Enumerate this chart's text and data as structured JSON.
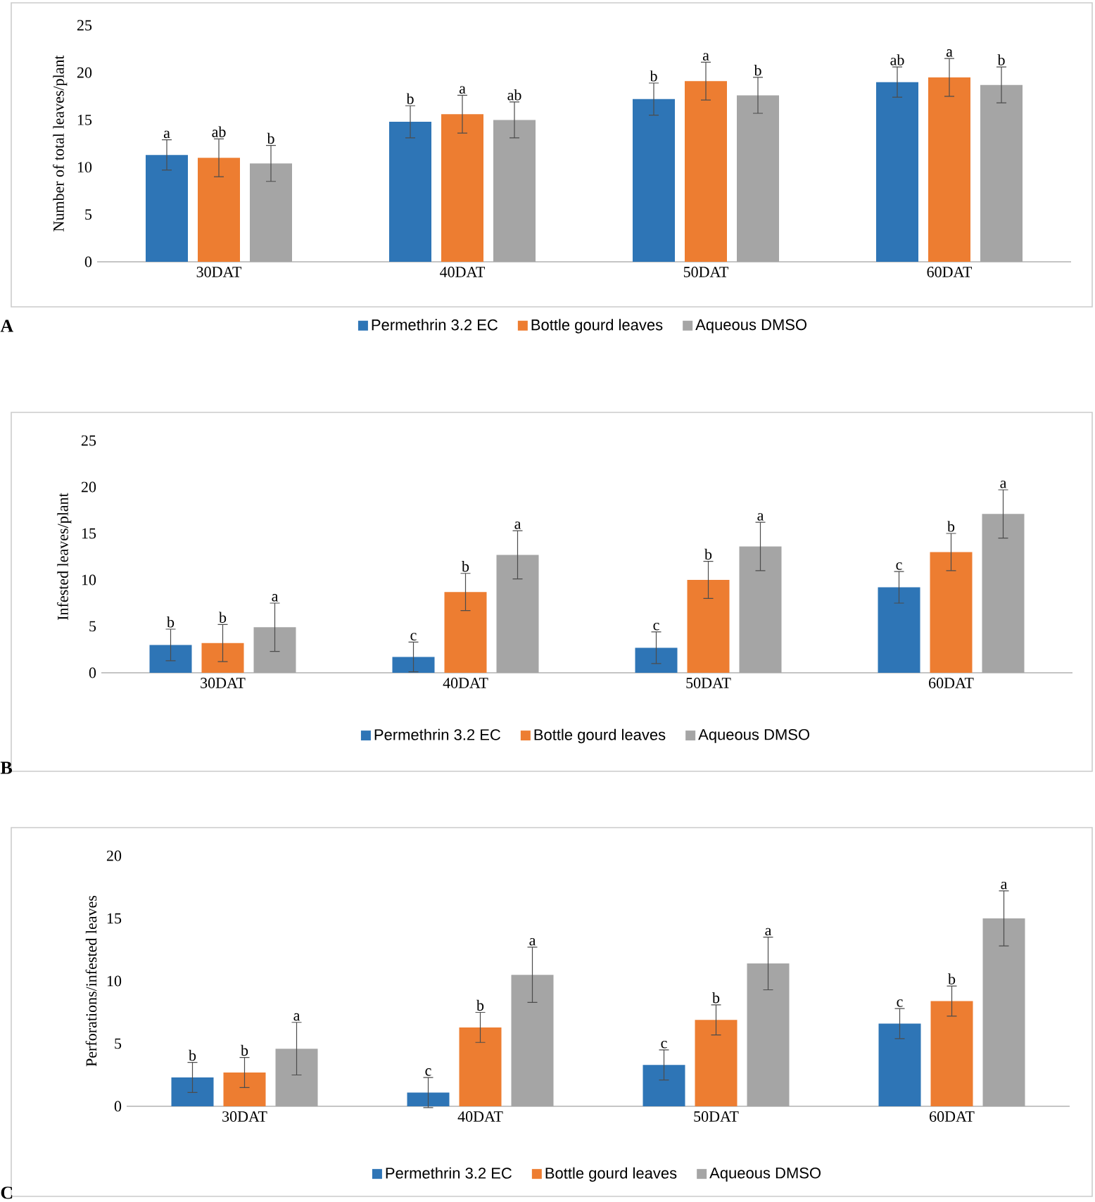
{
  "chart_data": [
    {
      "type": "bar",
      "ylabel": "Number of total leaves/plant",
      "categories": [
        "30DAT",
        "40DAT",
        "50DAT",
        "60DAT"
      ],
      "ylim": [
        0,
        25
      ],
      "yticks": [
        0,
        5,
        10,
        15,
        20,
        25
      ],
      "legend": "bottom",
      "annotations": [
        "A"
      ],
      "series": [
        {
          "name": "Permethrin 3.2 EC",
          "color": "#2e75b6",
          "values": [
            11.3,
            14.8,
            17.2,
            19.0
          ],
          "errors": [
            1.6,
            1.7,
            1.7,
            1.6
          ],
          "value_labels": [
            "a",
            "b",
            "b",
            "ab"
          ]
        },
        {
          "name": "Bottle gourd leaves",
          "color": "#ed7d31",
          "values": [
            11.0,
            15.6,
            19.1,
            19.5
          ],
          "errors": [
            2.0,
            2.0,
            2.0,
            2.0
          ],
          "value_labels": [
            "ab",
            "a",
            "a",
            "a"
          ]
        },
        {
          "name": "Aqueous DMSO",
          "color": "#a5a5a5",
          "values": [
            10.4,
            15.0,
            17.6,
            18.7
          ],
          "errors": [
            1.9,
            1.9,
            1.9,
            1.9
          ],
          "value_labels": [
            "b",
            "ab",
            "b",
            "b"
          ]
        }
      ]
    },
    {
      "type": "bar",
      "ylabel": "Infested leaves/plant",
      "categories": [
        "30DAT",
        "40DAT",
        "50DAT",
        "60DAT"
      ],
      "ylim": [
        0,
        25
      ],
      "yticks": [
        0,
        5,
        10,
        15,
        20,
        25
      ],
      "legend": "bottom",
      "annotations": [
        "B"
      ],
      "series": [
        {
          "name": "Permethrin 3.2 EC",
          "color": "#2e75b6",
          "values": [
            3.0,
            1.7,
            2.7,
            9.2
          ],
          "errors": [
            1.7,
            1.6,
            1.7,
            1.7
          ],
          "value_labels": [
            "b",
            "c",
            "c",
            "c"
          ]
        },
        {
          "name": "Bottle gourd leaves",
          "color": "#ed7d31",
          "values": [
            3.2,
            8.7,
            10.0,
            13.0
          ],
          "errors": [
            2.0,
            2.0,
            2.0,
            2.0
          ],
          "value_labels": [
            "b",
            "b",
            "b",
            "b"
          ]
        },
        {
          "name": "Aqueous DMSO",
          "color": "#a5a5a5",
          "values": [
            4.9,
            12.7,
            13.6,
            17.1
          ],
          "errors": [
            2.6,
            2.6,
            2.6,
            2.6
          ],
          "value_labels": [
            "a",
            "a",
            "a",
            "a"
          ]
        }
      ]
    },
    {
      "type": "bar",
      "ylabel": "Perforations/infested leaves",
      "categories": [
        "30DAT",
        "40DAT",
        "50DAT",
        "60DAT"
      ],
      "ylim": [
        0,
        20
      ],
      "yticks": [
        0,
        5,
        10,
        15,
        20
      ],
      "legend": "bottom",
      "annotations": [
        "C"
      ],
      "series": [
        {
          "name": "Permethrin 3.2 EC",
          "color": "#2e75b6",
          "values": [
            2.3,
            1.1,
            3.3,
            6.6
          ],
          "errors": [
            1.2,
            1.2,
            1.2,
            1.2
          ],
          "value_labels": [
            "b",
            "c",
            "c",
            "c"
          ]
        },
        {
          "name": "Bottle gourd leaves",
          "color": "#ed7d31",
          "values": [
            2.7,
            6.3,
            6.9,
            8.4
          ],
          "errors": [
            1.2,
            1.2,
            1.2,
            1.2
          ],
          "value_labels": [
            "b",
            "b",
            "b",
            "b"
          ]
        },
        {
          "name": "Aqueous DMSO",
          "color": "#a5a5a5",
          "values": [
            4.6,
            10.5,
            11.4,
            15.0
          ],
          "errors": [
            2.1,
            2.2,
            2.1,
            2.2
          ],
          "value_labels": [
            "a",
            "a",
            "a",
            "a"
          ]
        }
      ]
    }
  ]
}
